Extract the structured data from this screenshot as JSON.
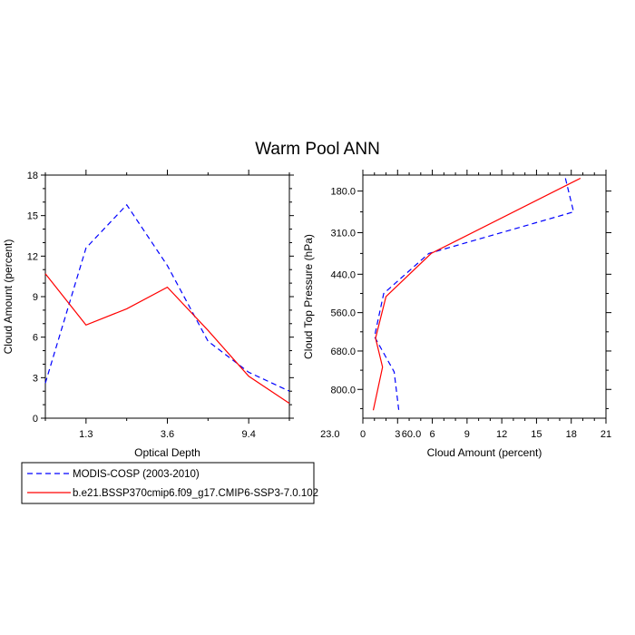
{
  "figure": {
    "title": "Warm Pool ANN"
  },
  "colors": {
    "modis": "#0000ff",
    "model": "#ff0000"
  },
  "legend": {
    "items": [
      {
        "label": "MODIS-COSP (2003-2010)",
        "color": "#0000ff",
        "dash": "dashed"
      },
      {
        "label": "b.e21.BSSP370cmip6.f09_g17.CMIP6-SSP3-7.0.102",
        "color": "#ff0000",
        "dash": "solid"
      }
    ]
  },
  "chart_data": [
    {
      "type": "line",
      "xlabel": "Optical Depth",
      "ylabel": "Cloud Amount (percent)",
      "x_tick_labels": [
        "1.3",
        "3.6",
        "9.4",
        "23.0",
        "60.0"
      ],
      "xlim": [
        0,
        6
      ],
      "ylim": [
        0,
        18
      ],
      "y_ticks": [
        0,
        3,
        6,
        9,
        12,
        15,
        18
      ],
      "grid": false,
      "x": [
        0,
        1,
        2,
        3,
        4,
        5,
        6
      ],
      "series": [
        {
          "name": "MODIS-COSP (2003-2010)",
          "color": "#0000ff",
          "dash": "dashed",
          "values": [
            2.6,
            12.6,
            15.8,
            11.3,
            5.7,
            3.4,
            2.0
          ]
        },
        {
          "name": "b.e21.BSSP370cmip6.f09_g17.CMIP6-SSP3-7.0.102",
          "color": "#ff0000",
          "dash": "solid",
          "values": [
            10.7,
            6.9,
            8.1,
            9.7,
            6.5,
            3.1,
            1.1
          ]
        }
      ]
    },
    {
      "type": "line",
      "xlabel": "Cloud Amount (percent)",
      "ylabel": "Cloud Top Pressure (hPa)",
      "xlim": [
        0,
        21
      ],
      "x_ticks": [
        0,
        3,
        6,
        9,
        12,
        15,
        18,
        21
      ],
      "ylim": [
        130,
        890
      ],
      "y_reversed": true,
      "y_ticks": [
        180,
        310,
        440,
        560,
        680,
        800
      ],
      "y_tick_labels": [
        "180.0",
        "310.0",
        "440.0",
        "560.0",
        "680.0",
        "800.0"
      ],
      "grid": false,
      "series": [
        {
          "name": "MODIS-COSP (2003-2010)",
          "color": "#0000ff",
          "dash": "dashed",
          "points": [
            [
              17.5,
              140
            ],
            [
              18.2,
              245
            ],
            [
              5.7,
              375
            ],
            [
              1.8,
              500
            ],
            [
              1.0,
              635
            ],
            [
              2.7,
              745
            ],
            [
              3.1,
              865
            ]
          ]
        },
        {
          "name": "b.e21.BSSP370cmip6.f09_g17.CMIP6-SSP3-7.0.102",
          "color": "#ff0000",
          "dash": "solid",
          "points": [
            [
              18.8,
              140
            ],
            [
              5.9,
              375
            ],
            [
              2.0,
              510
            ],
            [
              1.1,
              640
            ],
            [
              1.7,
              730
            ],
            [
              0.9,
              865
            ]
          ]
        }
      ]
    }
  ]
}
